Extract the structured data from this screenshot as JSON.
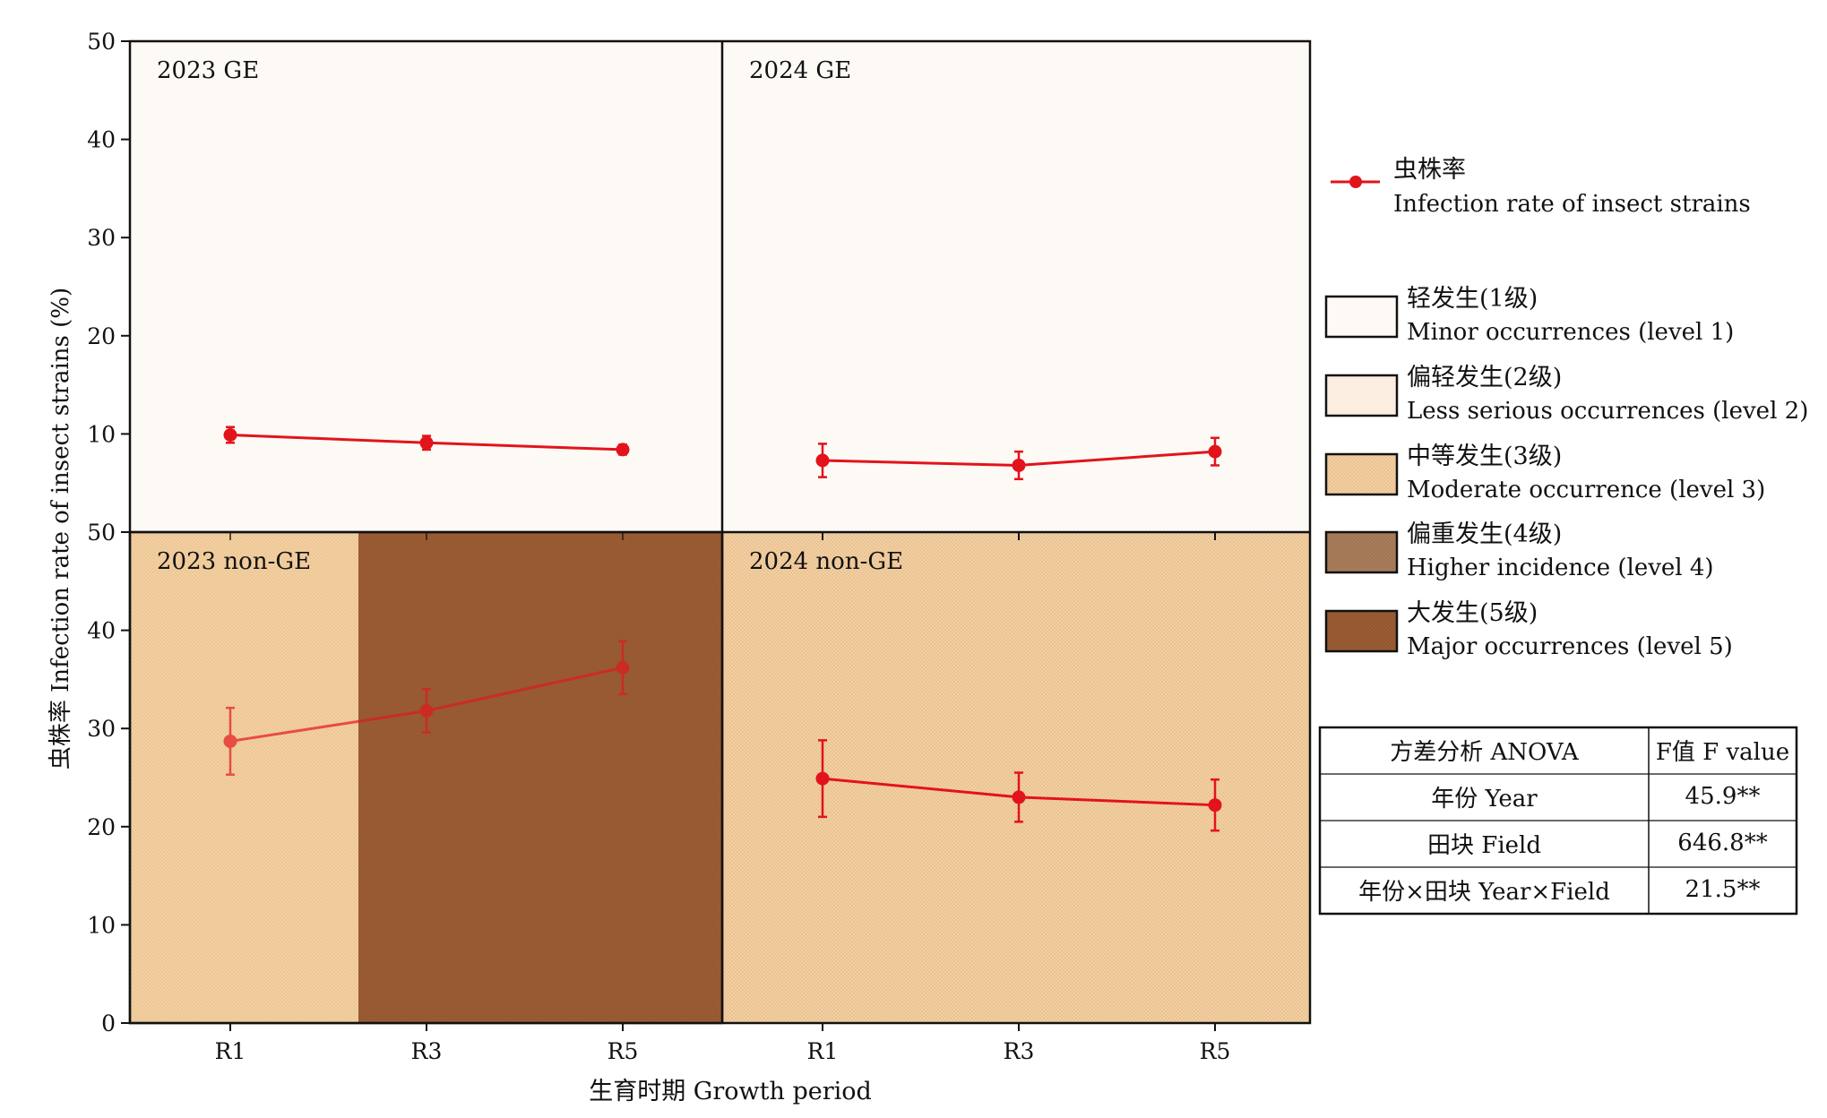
{
  "chart_data": {
    "type": "line",
    "ylabel": "虫株率 Infection rate of insect strains (%)",
    "xlabel": "生育时期 Growth period",
    "ylim": [
      0,
      50
    ],
    "yticks": [
      "0",
      "10",
      "20",
      "30",
      "40",
      "50"
    ],
    "top_yticks": [
      "10",
      "20",
      "30",
      "40",
      "50"
    ],
    "categories": [
      "R1",
      "R3",
      "R5"
    ],
    "line_color": "#e3131b",
    "panels": [
      {
        "label": "2023 GE",
        "series": [
          {
            "x": "R1",
            "y": 9.9,
            "err": 0.8
          },
          {
            "x": "R3",
            "y": 9.1,
            "err": 0.7
          },
          {
            "x": "R5",
            "y": 8.4,
            "err": 0.5
          }
        ],
        "shading": [
          {
            "level": 1,
            "from": "R1",
            "to": "R5"
          }
        ]
      },
      {
        "label": "2024 GE",
        "series": [
          {
            "x": "R1",
            "y": 7.3,
            "err": 1.7
          },
          {
            "x": "R3",
            "y": 6.8,
            "err": 1.4
          },
          {
            "x": "R5",
            "y": 8.2,
            "err": 1.4
          }
        ],
        "shading": [
          {
            "level": 1,
            "from": "R1",
            "to": "R5"
          }
        ]
      },
      {
        "label": "2023 non-GE",
        "series": [
          {
            "x": "R1",
            "y": 28.7,
            "err": 3.4
          },
          {
            "x": "R3",
            "y": 31.8,
            "err": 2.2
          },
          {
            "x": "R5",
            "y": 36.2,
            "err": 2.7
          }
        ],
        "shading": [
          {
            "level": 3,
            "region": "left"
          },
          {
            "level": 5,
            "region": "right"
          }
        ]
      },
      {
        "label": "2024 non-GE",
        "series": [
          {
            "x": "R1",
            "y": 24.9,
            "err": 3.9
          },
          {
            "x": "R3",
            "y": 23.0,
            "err": 2.5
          },
          {
            "x": "R5",
            "y": 22.2,
            "err": 2.6
          }
        ],
        "shading": [
          {
            "level": 3,
            "region": "all"
          }
        ]
      }
    ],
    "legend": {
      "series_label_cn": "虫株率",
      "series_label_en": "Infection rate of insect strains",
      "levels": [
        {
          "cn": "轻发生(1级)",
          "en": "Minor occurrences (level 1)",
          "color": "#fdf9f5"
        },
        {
          "cn": "偏轻发生(2级)",
          "en": "Less serious occurrences (level 2)",
          "color": "#fbeee1"
        },
        {
          "cn": "中等发生(3级)",
          "en": "Moderate occurrence (level 3)",
          "color": "#f5cf9f"
        },
        {
          "cn": "偏重发生(4级)",
          "en": "Higher incidence (level 4)",
          "color": "#a97d5b"
        },
        {
          "cn": "大发生(5级)",
          "en": "Major occurrences (level 5)",
          "color": "#9b5c34"
        }
      ]
    },
    "anova": {
      "header": [
        "方差分析 ANOVA",
        "F值 F value"
      ],
      "rows": [
        [
          "年份 Year",
          "45.9**"
        ],
        [
          "田块 Field",
          "646.8**"
        ],
        [
          "年份×田块 Year×Field",
          "21.5**"
        ]
      ]
    }
  }
}
